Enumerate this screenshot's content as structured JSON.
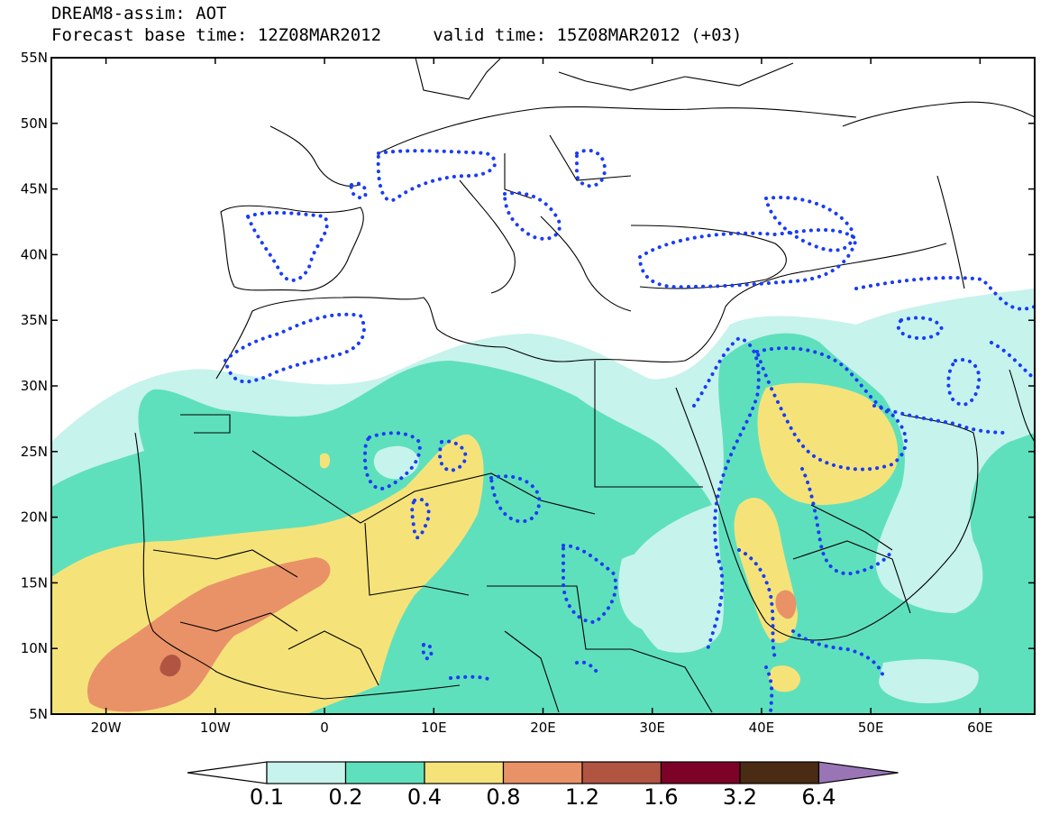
{
  "title": {
    "line1": "DREAM8-assim: AOT",
    "line2": "Forecast base time: 12Z08MAR2012     valid time: 15Z08MAR2012 (+03)"
  },
  "map": {
    "lon_range": [
      -25,
      65
    ],
    "lat_range": [
      5,
      55
    ],
    "lat_ticks": [
      "55N",
      "50N",
      "45N",
      "40N",
      "35N",
      "30N",
      "25N",
      "20N",
      "15N",
      "10N",
      "5N"
    ],
    "lon_ticks": [
      "20W",
      "10W",
      "0",
      "10E",
      "20E",
      "30E",
      "40E",
      "50E",
      "60E"
    ]
  },
  "colors": {
    "c01": "#c6f3ec",
    "c02": "#5fe0bc",
    "c04": "#f5e37a",
    "c08": "#e99268",
    "c12": "#b25442",
    "c16": "#7d0228",
    "c32": "#4a2b13",
    "c64": "#9a75b6",
    "contour": "#1a3cf5",
    "coast": "#000000"
  },
  "colorbar": {
    "labels": [
      "0.1",
      "0.2",
      "0.4",
      "0.8",
      "1.2",
      "1.6",
      "3.2",
      "6.4"
    ]
  }
}
